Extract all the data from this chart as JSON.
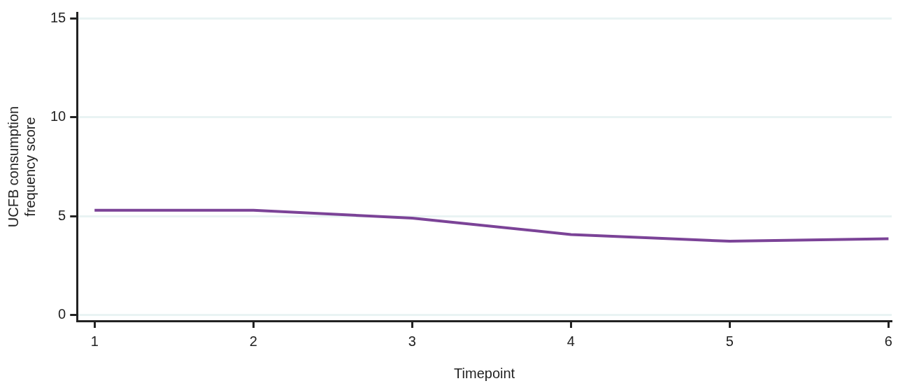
{
  "chart_data": {
    "type": "line",
    "xlabel": "Timepoint",
    "ylabel": "UCFB consumption frequency score",
    "x": [
      1,
      2,
      3,
      4,
      5,
      6
    ],
    "series": [
      {
        "color": "#7b4397",
        "values": [
          5.3,
          5.3,
          4.9,
          4.07,
          3.73,
          3.86
        ]
      }
    ],
    "xlim": [
      0.89,
      6.02
    ],
    "xticks": [
      1,
      2,
      3,
      4,
      5,
      6
    ],
    "ylim": [
      -0.3,
      15.3
    ],
    "yticks": [
      0,
      5,
      10,
      15
    ],
    "grid": "y",
    "legend": false,
    "marker": "none",
    "line_style": "solid"
  }
}
